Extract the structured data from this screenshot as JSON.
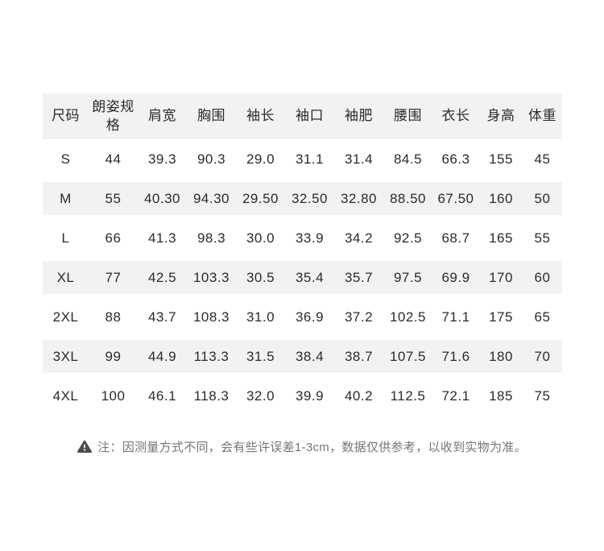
{
  "chart_data": {
    "type": "table",
    "columns": [
      "尺码",
      "朗姿规格",
      "肩宽",
      "胸围",
      "袖长",
      "袖口",
      "袖肥",
      "腰围",
      "衣长",
      "身高",
      "体重"
    ],
    "rows": [
      [
        "S",
        "44",
        "39.3",
        "90.3",
        "29.0",
        "31.1",
        "31.4",
        "84.5",
        "66.3",
        "155",
        "45"
      ],
      [
        "M",
        "55",
        "40.30",
        "94.30",
        "29.50",
        "32.50",
        "32.80",
        "88.50",
        "67.50",
        "160",
        "50"
      ],
      [
        "L",
        "66",
        "41.3",
        "98.3",
        "30.0",
        "33.9",
        "34.2",
        "92.5",
        "68.7",
        "165",
        "55"
      ],
      [
        "XL",
        "77",
        "42.5",
        "103.3",
        "30.5",
        "35.4",
        "35.7",
        "97.5",
        "69.9",
        "170",
        "60"
      ],
      [
        "2XL",
        "88",
        "43.7",
        "108.3",
        "31.0",
        "36.9",
        "37.2",
        "102.5",
        "71.1",
        "175",
        "65"
      ],
      [
        "3XL",
        "99",
        "44.9",
        "113.3",
        "31.5",
        "38.4",
        "38.7",
        "107.5",
        "71.6",
        "180",
        "70"
      ],
      [
        "4XL",
        "100",
        "46.1",
        "118.3",
        "32.0",
        "39.9",
        "40.2",
        "112.5",
        "72.1",
        "185",
        "75"
      ]
    ],
    "striped_row_indices": [
      1,
      3,
      5
    ],
    "grid": "off",
    "title": ""
  },
  "note": {
    "icon": "warning-triangle",
    "text": "注：因测量方式不同，会有些许误差1-3cm，数据仅供参考，以收到实物为准。"
  },
  "colors": {
    "stripe": "#f2f2f2",
    "table_text": "#2b2b2b",
    "note_text": "#757575",
    "warning_icon": "#4d4d4d"
  }
}
